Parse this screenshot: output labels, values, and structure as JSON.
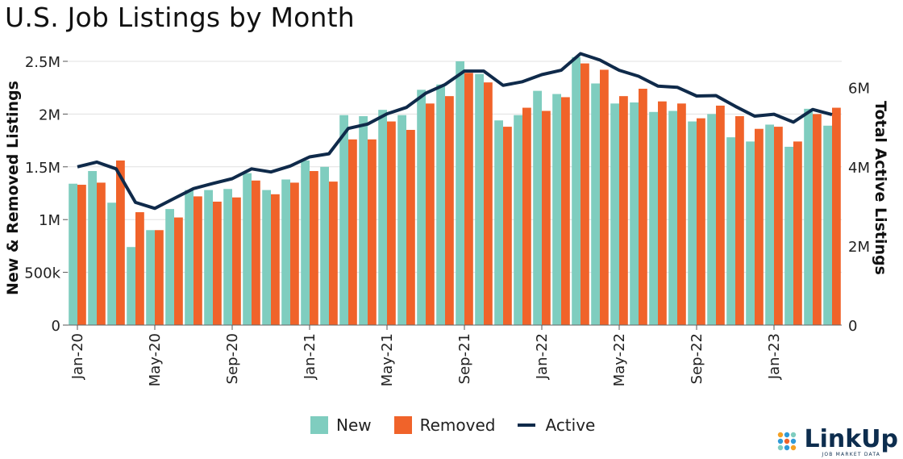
{
  "title": "U.S. Job Listings by Month",
  "legend": {
    "new": "New",
    "removed": "Removed",
    "active": "Active"
  },
  "logo": {
    "name": "LinkUp",
    "tagline": "JOB MARKET DATA"
  },
  "colors": {
    "new": "#7fcdbf",
    "removed": "#f0632a",
    "active": "#0f2a4a",
    "grid": "#e0e0e0"
  },
  "chart_data": {
    "type": "bar",
    "ylabel": "New & Removed Listings",
    "y2label": "Total Active Listings",
    "ylim": [
      0,
      2500000
    ],
    "y2lim": [
      0,
      6666667
    ],
    "yticks": [
      {
        "v": 0,
        "label": "0"
      },
      {
        "v": 500000,
        "label": "500k"
      },
      {
        "v": 1000000,
        "label": "1M"
      },
      {
        "v": 1500000,
        "label": "1.5M"
      },
      {
        "v": 2000000,
        "label": "2M"
      },
      {
        "v": 2500000,
        "label": "2.5M"
      }
    ],
    "y2ticks": [
      {
        "v": 0,
        "label": "0"
      },
      {
        "v": 2000000,
        "label": "2M"
      },
      {
        "v": 4000000,
        "label": "4M"
      },
      {
        "v": 6000000,
        "label": "6M"
      }
    ],
    "xtick_labels": [
      {
        "i": 0,
        "label": "Jan-20"
      },
      {
        "i": 4,
        "label": "May-20"
      },
      {
        "i": 8,
        "label": "Sep-20"
      },
      {
        "i": 12,
        "label": "Jan-21"
      },
      {
        "i": 16,
        "label": "May-21"
      },
      {
        "i": 20,
        "label": "Sep-21"
      },
      {
        "i": 24,
        "label": "Jan-22"
      },
      {
        "i": 28,
        "label": "May-22"
      },
      {
        "i": 32,
        "label": "Sep-22"
      },
      {
        "i": 36,
        "label": "Jan-23"
      }
    ],
    "categories": [
      "Jan-20",
      "Feb-20",
      "Mar-20",
      "Apr-20",
      "May-20",
      "Jun-20",
      "Jul-20",
      "Aug-20",
      "Sep-20",
      "Oct-20",
      "Nov-20",
      "Dec-20",
      "Jan-21",
      "Feb-21",
      "Mar-21",
      "Apr-21",
      "May-21",
      "Jun-21",
      "Jul-21",
      "Aug-21",
      "Sep-21",
      "Oct-21",
      "Nov-21",
      "Dec-21",
      "Jan-22",
      "Feb-22",
      "Mar-22",
      "Apr-22",
      "May-22",
      "Jun-22",
      "Jul-22",
      "Aug-22",
      "Sep-22",
      "Oct-22",
      "Nov-22",
      "Dec-22",
      "Jan-23",
      "Feb-23",
      "Mar-23",
      "Apr-23"
    ],
    "series": [
      {
        "name": "New",
        "axis": "left",
        "values": [
          1340000,
          1460000,
          1160000,
          740000,
          900000,
          1100000,
          1280000,
          1280000,
          1290000,
          1440000,
          1280000,
          1380000,
          1560000,
          1500000,
          1990000,
          1980000,
          2040000,
          1990000,
          2230000,
          2280000,
          2500000,
          2380000,
          1940000,
          1990000,
          2220000,
          2190000,
          2540000,
          2290000,
          2100000,
          2110000,
          2020000,
          2030000,
          1930000,
          2000000,
          1780000,
          1740000,
          1900000,
          1690000,
          2050000,
          1890000
        ]
      },
      {
        "name": "Removed",
        "axis": "left",
        "values": [
          1330000,
          1350000,
          1560000,
          1070000,
          900000,
          1020000,
          1220000,
          1170000,
          1210000,
          1370000,
          1240000,
          1350000,
          1460000,
          1360000,
          1760000,
          1760000,
          1930000,
          1850000,
          2100000,
          2170000,
          2390000,
          2300000,
          1880000,
          2060000,
          2030000,
          2160000,
          2480000,
          2420000,
          2170000,
          2240000,
          2120000,
          2100000,
          1960000,
          2080000,
          1980000,
          1860000,
          1880000,
          1740000,
          2000000,
          2060000
        ]
      },
      {
        "name": "Active",
        "axis": "right",
        "values": [
          4000000,
          4120000,
          3950000,
          3100000,
          2950000,
          3200000,
          3450000,
          3580000,
          3700000,
          3950000,
          3870000,
          4020000,
          4250000,
          4330000,
          4970000,
          5080000,
          5340000,
          5500000,
          5860000,
          6080000,
          6420000,
          6420000,
          6060000,
          6150000,
          6330000,
          6440000,
          6860000,
          6700000,
          6440000,
          6290000,
          6040000,
          6010000,
          5790000,
          5800000,
          5530000,
          5280000,
          5330000,
          5130000,
          5450000,
          5320000
        ]
      }
    ]
  }
}
